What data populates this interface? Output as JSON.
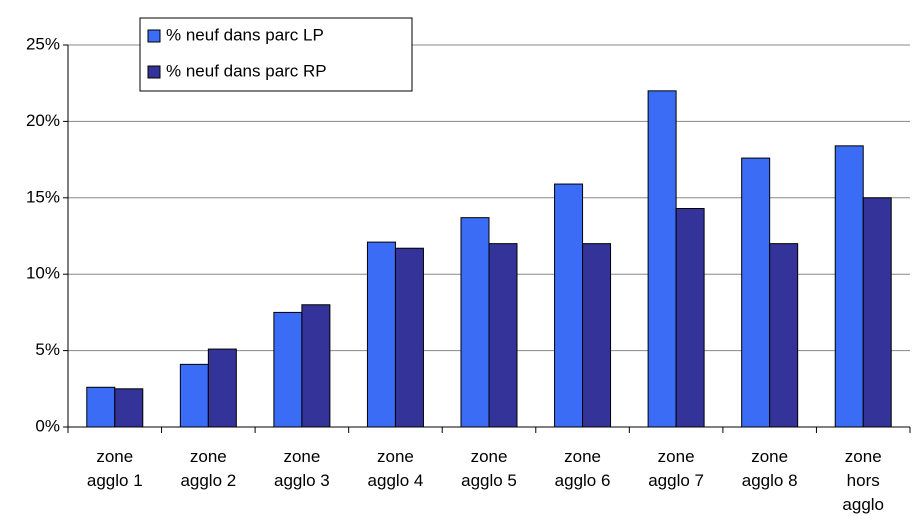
{
  "chart_data": {
    "type": "bar",
    "categories": [
      "zone\nagglo 1",
      "zone\nagglo 2",
      "zone\nagglo 3",
      "zone\nagglo 4",
      "zone\nagglo 5",
      "zone\nagglo 6",
      "zone\nagglo 7",
      "zone\nagglo 8",
      "zone\nhors\nagglo"
    ],
    "series": [
      {
        "name": "% neuf dans parc LP",
        "color": "#3b6cf5",
        "values": [
          2.6,
          4.1,
          7.5,
          12.1,
          13.7,
          15.9,
          22.0,
          17.6,
          18.4
        ]
      },
      {
        "name": "% neuf dans parc RP",
        "color": "#333399",
        "values": [
          2.5,
          5.1,
          8.0,
          11.7,
          12.0,
          12.0,
          14.3,
          12.0,
          15.0
        ]
      }
    ],
    "ylim": [
      0,
      25
    ],
    "yticks": [
      {
        "value": 0,
        "label": "0%"
      },
      {
        "value": 5,
        "label": "5%"
      },
      {
        "value": 10,
        "label": "10%"
      },
      {
        "value": 15,
        "label": "15%"
      },
      {
        "value": 20,
        "label": "20%"
      },
      {
        "value": 25,
        "label": "25%"
      }
    ],
    "grid": true,
    "legend": "top-left"
  }
}
